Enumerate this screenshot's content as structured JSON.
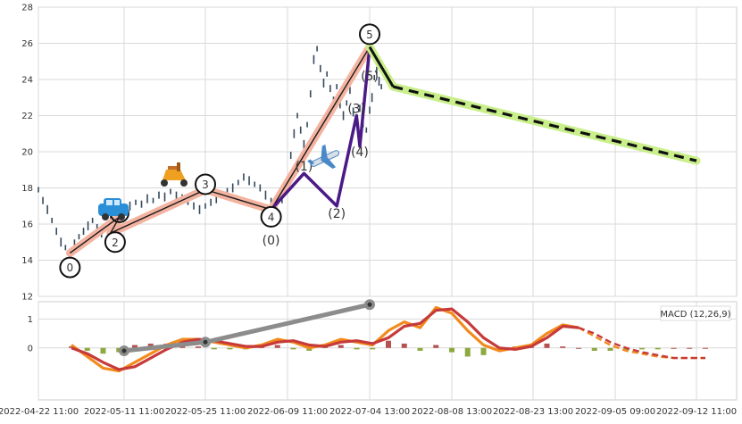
{
  "chart_data": [
    {
      "type": "line",
      "panel": "price",
      "ylim": [
        12,
        28
      ],
      "y_ticks": [
        12,
        14,
        16,
        18,
        20,
        22,
        24,
        26,
        28
      ],
      "grid": true,
      "candles": [
        [
          "2022-04-22",
          17.9
        ],
        [
          "2022-04-23",
          17.3
        ],
        [
          "2022-04-24",
          16.8
        ],
        [
          "2022-04-25",
          16.2
        ],
        [
          "2022-04-26",
          15.6
        ],
        [
          "2022-04-27",
          15.0
        ],
        [
          "2022-04-28",
          14.7
        ],
        [
          "2022-04-29",
          14.4
        ],
        [
          "2022-04-30",
          14.9
        ],
        [
          "2022-05-01",
          15.3
        ],
        [
          "2022-05-02",
          15.6
        ],
        [
          "2022-05-03",
          15.9
        ],
        [
          "2022-05-04",
          16.2
        ],
        [
          "2022-05-05",
          15.8
        ],
        [
          "2022-05-06",
          15.5
        ],
        [
          "2022-05-07",
          15.9
        ],
        [
          "2022-05-08",
          16.3
        ],
        [
          "2022-05-09",
          16.6
        ],
        [
          "2022-05-10",
          16.4
        ],
        [
          "2022-05-11",
          16.8
        ],
        [
          "2022-05-12",
          17.0
        ],
        [
          "2022-05-13",
          17.2
        ],
        [
          "2022-05-14",
          17.1
        ],
        [
          "2022-05-15",
          17.4
        ],
        [
          "2022-05-16",
          17.3
        ],
        [
          "2022-05-17",
          17.6
        ],
        [
          "2022-05-18",
          17.5
        ],
        [
          "2022-05-19",
          17.8
        ],
        [
          "2022-05-20",
          17.6
        ],
        [
          "2022-05-21",
          17.4
        ],
        [
          "2022-05-22",
          17.2
        ],
        [
          "2022-05-23",
          17.0
        ],
        [
          "2022-05-24",
          16.8
        ],
        [
          "2022-05-25",
          17.0
        ],
        [
          "2022-05-26",
          17.2
        ],
        [
          "2022-05-27",
          17.4
        ],
        [
          "2022-05-28",
          17.6
        ],
        [
          "2022-05-29",
          17.8
        ],
        [
          "2022-05-30",
          18.0
        ],
        [
          "2022-05-31",
          18.3
        ],
        [
          "2022-06-01",
          18.6
        ],
        [
          "2022-06-02",
          18.4
        ],
        [
          "2022-06-03",
          18.2
        ],
        [
          "2022-06-04",
          18.0
        ],
        [
          "2022-06-05",
          17.6
        ],
        [
          "2022-06-06",
          17.3
        ],
        [
          "2022-06-07",
          17.0
        ],
        [
          "2022-06-08",
          17.4
        ],
        [
          "2022-06-09",
          18.5
        ],
        [
          "2022-06-10",
          19.8
        ],
        [
          "2022-06-11",
          21.0
        ],
        [
          "2022-06-12",
          22.0
        ],
        [
          "2022-06-13",
          21.2
        ],
        [
          "2022-06-14",
          20.4
        ],
        [
          "2022-06-15",
          21.5
        ],
        [
          "2022-06-16",
          23.2
        ],
        [
          "2022-06-17",
          25.1
        ],
        [
          "2022-06-18",
          25.7
        ],
        [
          "2022-06-19",
          24.6
        ],
        [
          "2022-06-20",
          23.8
        ],
        [
          "2022-06-21",
          24.3
        ],
        [
          "2022-06-22",
          23.5
        ],
        [
          "2022-06-23",
          22.8
        ],
        [
          "2022-06-24",
          23.6
        ],
        [
          "2022-06-25",
          22.6
        ],
        [
          "2022-06-26",
          22.0
        ],
        [
          "2022-06-27",
          22.7
        ],
        [
          "2022-06-28",
          23.4
        ],
        [
          "2022-06-29",
          22.2
        ],
        [
          "2022-06-30",
          21.8
        ],
        [
          "2022-07-01",
          22.4
        ],
        [
          "2022-07-02",
          21.6
        ],
        [
          "2022-07-03",
          21.2
        ],
        [
          "2022-07-04",
          22.3
        ],
        [
          "2022-07-05",
          23.0
        ],
        [
          "2022-07-06",
          24.1
        ],
        [
          "2022-07-07",
          24.5
        ],
        [
          "2022-07-08",
          23.9
        ],
        [
          "2022-07-09",
          23.6
        ]
      ],
      "wave_labels": [
        "0",
        "2",
        "3",
        "4",
        "5",
        "(0)",
        "(1)",
        "(2)",
        "(3)",
        "(4)",
        "(5)"
      ],
      "impulse_points": [
        [
          "2022-04-29",
          14.4
        ],
        [
          "2022-05-10",
          16.4
        ],
        [
          "2022-05-08",
          15.5
        ],
        [
          "2022-05-25",
          17.9
        ],
        [
          "2022-06-06",
          16.8
        ],
        [
          "2022-07-04",
          25.8
        ]
      ],
      "sub_wave_points": [
        [
          "2022-06-06",
          16.8
        ],
        [
          "2022-06-14",
          18.8
        ],
        [
          "2022-06-24",
          17.0
        ],
        [
          "2022-06-30",
          22.0
        ],
        [
          "2022-07-01",
          20.3
        ],
        [
          "2022-07-04",
          25.8
        ]
      ],
      "forecast_points": [
        [
          "2022-07-04",
          25.8
        ],
        [
          "2022-07-14",
          23.6
        ],
        [
          "2022-09-12",
          19.5
        ]
      ]
    },
    {
      "type": "line",
      "panel": "macd",
      "title": "MACD (12,26,9)",
      "ylim": [
        -1.8,
        1.6
      ],
      "y_ticks": [
        0,
        1
      ],
      "grid": true,
      "x_tick_labels": [
        "2022-04-22 11:00",
        "2022-05-11 11:00",
        "2022-05-25 11:00",
        "2022-06-09 11:00",
        "2022-07-04 13:00",
        "2022-08-08 13:00",
        "2022-08-23 13:00",
        "2022-09-05 09:00",
        "2022-09-12 11:00"
      ],
      "series": [
        {
          "values": [
            0.1,
            -0.3,
            -0.7,
            -0.8,
            -0.5,
            -0.2,
            0.1,
            0.3,
            0.3,
            0.2,
            0.1,
            0.0,
            0.1,
            0.3,
            0.2,
            0.0,
            0.1,
            0.3,
            0.2,
            0.1,
            0.6,
            0.9,
            0.7,
            1.4,
            1.2,
            0.6,
            0.1,
            -0.1,
            0.0,
            0.1,
            0.5,
            0.8,
            0.7,
            0.4,
            0.1,
            -0.1,
            -0.2,
            -0.3,
            -0.35,
            -0.35,
            -0.35
          ]
        },
        {
          "values": [
            0.0,
            -0.2,
            -0.5,
            -0.75,
            -0.65,
            -0.35,
            -0.05,
            0.2,
            0.3,
            0.25,
            0.15,
            0.05,
            0.05,
            0.2,
            0.25,
            0.1,
            0.05,
            0.2,
            0.25,
            0.15,
            0.35,
            0.75,
            0.85,
            1.3,
            1.35,
            0.9,
            0.35,
            0.0,
            -0.05,
            0.05,
            0.35,
            0.75,
            0.7,
            0.5,
            0.2,
            0.0,
            -0.15,
            -0.25,
            -0.35,
            -0.35,
            -0.35
          ]
        }
      ],
      "histogram": [
        0.05,
        -0.1,
        -0.2,
        -0.15,
        0.1,
        0.15,
        0.15,
        0.1,
        0.05,
        -0.05,
        -0.05,
        -0.05,
        0.05,
        0.1,
        -0.05,
        -0.1,
        0.05,
        0.1,
        -0.05,
        -0.05,
        0.25,
        0.15,
        -0.1,
        0.1,
        -0.15,
        -0.3,
        -0.25,
        -0.1,
        0.05,
        0.05,
        0.15,
        0.05,
        0.0,
        -0.1,
        -0.1,
        -0.1,
        -0.05,
        -0.05,
        0.0,
        0.0,
        0.0
      ],
      "divergence_points": [
        [
          "2022-05-11",
          -0.1
        ],
        [
          "2022-05-25",
          0.2
        ],
        [
          "2022-07-04",
          1.5
        ]
      ]
    }
  ]
}
